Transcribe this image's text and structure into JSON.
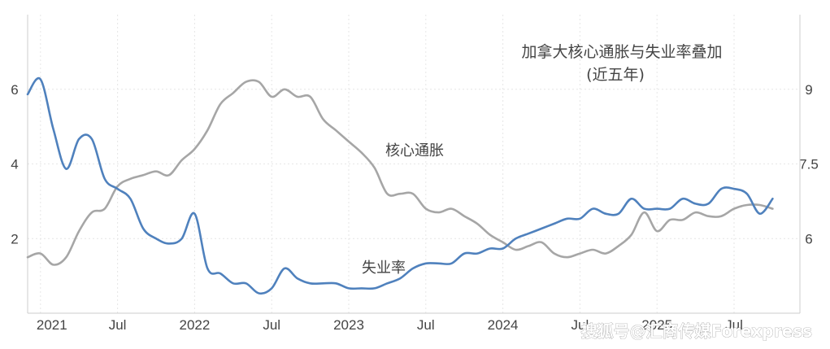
{
  "chart_data": {
    "type": "line",
    "title": "加拿大核心通胀与失业率叠加",
    "subtitle": "(近五年)",
    "xlabel": "",
    "ylabel_left": "",
    "ylabel_right": "",
    "x_tick_labels": [
      "2021",
      "Jul",
      "2022",
      "Jul",
      "2023",
      "Jul",
      "2024",
      "Jul",
      "2025",
      "Jul"
    ],
    "x_tick_dates": [
      "2021-01",
      "2021-07",
      "2022-01",
      "2022-07",
      "2023-01",
      "2023-07",
      "2024-01",
      "2024-07",
      "2025-01",
      "2025-07"
    ],
    "left_axis": {
      "ticks": [
        2,
        4,
        6
      ],
      "ylim": [
        0,
        8
      ]
    },
    "right_axis": {
      "ticks": [
        6,
        7.5,
        9
      ],
      "ylim": [
        4.5,
        10.5
      ]
    },
    "grid": true,
    "annotations": [
      {
        "text": "核心通胀",
        "series": "core"
      },
      {
        "text": "失业率",
        "series": "unemp"
      }
    ],
    "series": [
      {
        "key": "core",
        "axis": "left",
        "color": "#a6a6a6",
        "x": [
          "2020-12",
          "2021-01",
          "2021-02",
          "2021-03",
          "2021-04",
          "2021-05",
          "2021-06",
          "2021-07",
          "2021-08",
          "2021-09",
          "2021-10",
          "2021-11",
          "2021-12",
          "2022-01",
          "2022-02",
          "2022-03",
          "2022-04",
          "2022-05",
          "2022-06",
          "2022-07",
          "2022-08",
          "2022-09",
          "2022-10",
          "2022-11",
          "2022-12",
          "2023-01",
          "2023-02",
          "2023-03",
          "2023-04",
          "2023-05",
          "2023-06",
          "2023-07",
          "2023-08",
          "2023-09",
          "2023-10",
          "2023-11",
          "2023-12",
          "2024-01",
          "2024-02",
          "2024-03",
          "2024-04",
          "2024-05",
          "2024-06",
          "2024-07",
          "2024-08",
          "2024-09",
          "2024-10",
          "2024-11",
          "2024-12",
          "2025-01",
          "2025-02",
          "2025-03",
          "2025-04",
          "2025-05",
          "2025-06",
          "2025-07",
          "2025-08",
          "2025-09",
          "2025-10"
        ],
        "values": [
          1.5,
          1.6,
          1.3,
          1.5,
          2.2,
          2.7,
          2.8,
          3.4,
          3.6,
          3.7,
          3.8,
          3.7,
          4.1,
          4.4,
          4.9,
          5.6,
          5.9,
          6.2,
          6.2,
          5.8,
          6.0,
          5.8,
          5.8,
          5.2,
          4.9,
          4.6,
          4.3,
          3.9,
          3.2,
          3.2,
          3.2,
          2.8,
          2.7,
          2.8,
          2.6,
          2.4,
          2.1,
          1.9,
          1.7,
          1.8,
          1.9,
          1.6,
          1.5,
          1.6,
          1.7,
          1.6,
          1.8,
          2.1,
          2.7,
          2.2,
          2.5,
          2.5,
          2.7,
          2.6,
          2.6,
          2.8,
          2.9,
          2.9,
          2.8
        ]
      },
      {
        "key": "unemp",
        "axis": "right",
        "color": "#4f81bd",
        "x": [
          "2020-12",
          "2021-01",
          "2021-02",
          "2021-03",
          "2021-04",
          "2021-05",
          "2021-06",
          "2021-07",
          "2021-08",
          "2021-09",
          "2021-10",
          "2021-11",
          "2021-12",
          "2022-01",
          "2022-02",
          "2022-03",
          "2022-04",
          "2022-05",
          "2022-06",
          "2022-07",
          "2022-08",
          "2022-09",
          "2022-10",
          "2022-11",
          "2022-12",
          "2023-01",
          "2023-02",
          "2023-03",
          "2023-04",
          "2023-05",
          "2023-06",
          "2023-07",
          "2023-08",
          "2023-09",
          "2023-10",
          "2023-11",
          "2023-12",
          "2024-01",
          "2024-02",
          "2024-03",
          "2024-04",
          "2024-05",
          "2024-06",
          "2024-07",
          "2024-08",
          "2024-09",
          "2024-10",
          "2024-11",
          "2024-12",
          "2025-01",
          "2025-02",
          "2025-03",
          "2025-04",
          "2025-05",
          "2025-06",
          "2025-07",
          "2025-08",
          "2025-09",
          "2025-10"
        ],
        "values": [
          8.9,
          9.2,
          8.2,
          7.4,
          8.0,
          8.0,
          7.2,
          7.0,
          6.8,
          6.2,
          6.0,
          5.9,
          6.0,
          6.5,
          5.4,
          5.3,
          5.1,
          5.1,
          4.9,
          5.0,
          5.4,
          5.2,
          5.1,
          5.1,
          5.1,
          5.0,
          5.0,
          5.0,
          5.1,
          5.2,
          5.4,
          5.5,
          5.5,
          5.5,
          5.7,
          5.7,
          5.8,
          5.8,
          6.0,
          6.1,
          6.2,
          6.3,
          6.4,
          6.4,
          6.6,
          6.5,
          6.5,
          6.8,
          6.6,
          6.6,
          6.6,
          6.8,
          6.7,
          6.7,
          7.0,
          7.0,
          6.9,
          6.5,
          6.8
        ]
      }
    ]
  },
  "watermark": {
    "text": "搜狐号@汇商传媒Forexpress"
  }
}
